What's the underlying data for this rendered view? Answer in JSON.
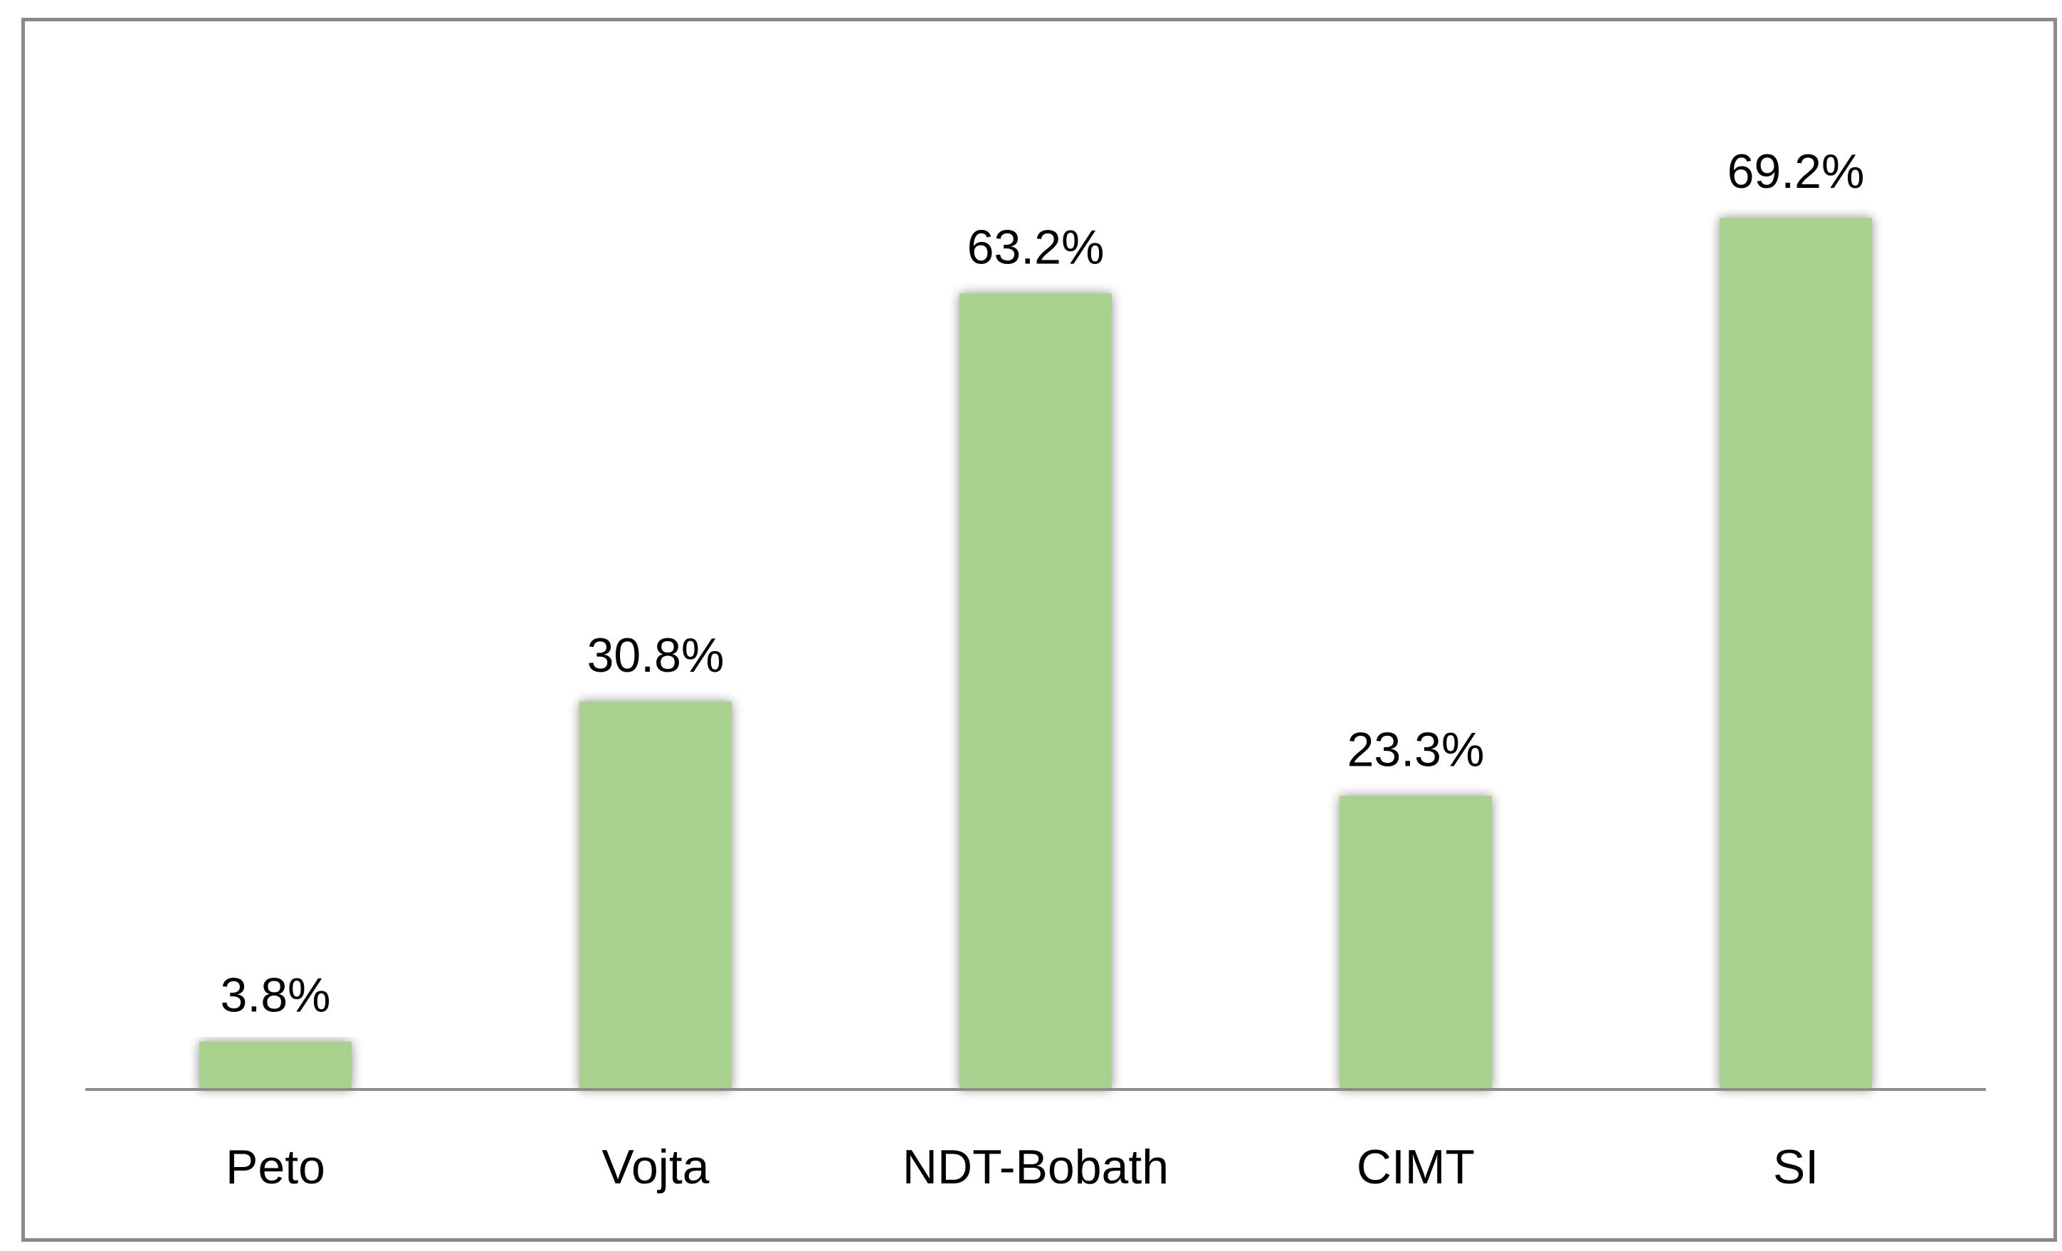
{
  "chart_data": {
    "type": "bar",
    "categories": [
      "Peto",
      "Vojta",
      "NDT-Bobath",
      "CIMT",
      "SI"
    ],
    "values": [
      3.8,
      30.8,
      63.2,
      23.3,
      69.2
    ],
    "value_labels": [
      "3.8%",
      "30.8%",
      "63.2%",
      "23.3%",
      "69.2%"
    ],
    "title": "",
    "xlabel": "",
    "ylabel": "",
    "ylim": [
      0,
      75
    ],
    "grid": false,
    "legend": "none",
    "bar_color": "#a9d18e",
    "axis_color": "#8c8c8c"
  }
}
